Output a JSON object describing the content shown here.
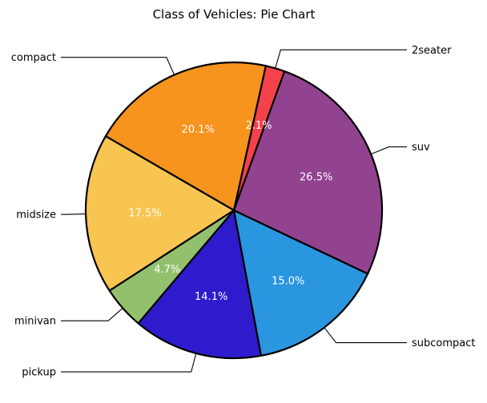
{
  "chart_data": {
    "type": "pie",
    "title": "Class of Vehicles: Pie Chart",
    "categories": [
      "2seater",
      "compact",
      "midsize",
      "minivan",
      "pickup",
      "subcompact",
      "suv"
    ],
    "values": [
      2.1,
      20.1,
      17.5,
      4.7,
      14.1,
      15.0,
      26.5
    ],
    "labels": [
      "2.1%",
      "20.1%",
      "17.5%",
      "4.7%",
      "14.1%",
      "15.0%",
      "26.5%"
    ],
    "colors": [
      "#f5424a",
      "#f7941e",
      "#f8c551",
      "#93c06c",
      "#2e1ccc",
      "#2a96e0",
      "#924390"
    ],
    "start_angle_deg": 70,
    "direction": "counterclockwise",
    "legend": "none"
  }
}
